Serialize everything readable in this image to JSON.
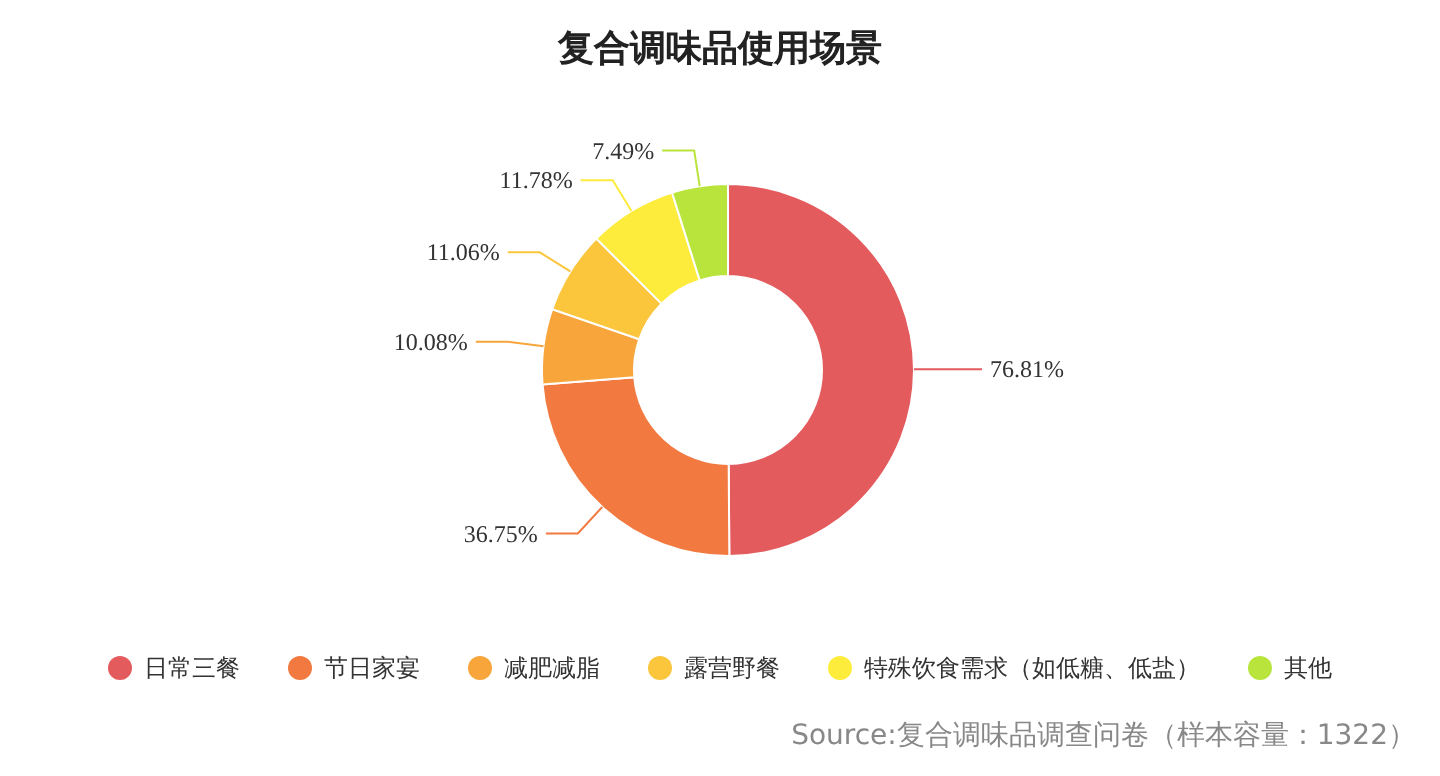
{
  "chart_data": {
    "type": "donut",
    "title": "复合调味品使用场景",
    "categories": [
      "日常三餐",
      "节日家宴",
      "减肥减脂",
      "露营野餐",
      "特殊饮食需求（如低糖、低盐）",
      "其他"
    ],
    "values": [
      76.81,
      36.75,
      10.08,
      11.06,
      11.78,
      7.49
    ],
    "value_labels": [
      "76.81%",
      "36.75%",
      "10.08%",
      "11.06%",
      "11.78%",
      "7.49%"
    ],
    "colors": [
      "#e45b5e",
      "#f2793f",
      "#f8a53b",
      "#fbc53c",
      "#fdec3c",
      "#b9e43c"
    ],
    "legend": "bottom",
    "annotations": [
      "Source:复合调味品调查问卷（样本容量：1322）"
    ]
  }
}
